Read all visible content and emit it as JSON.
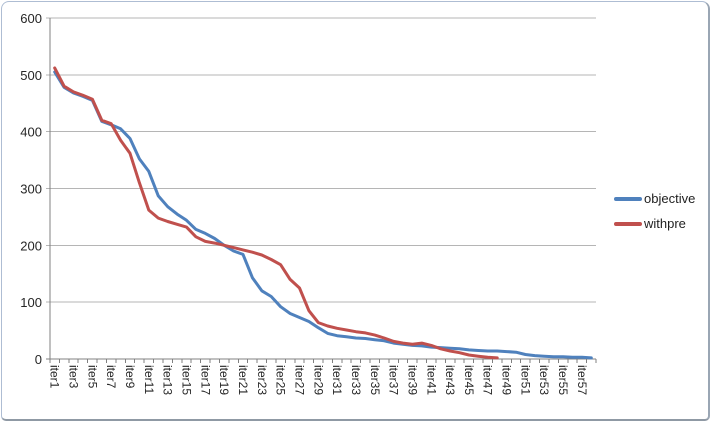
{
  "chart_data": {
    "type": "line",
    "title": "",
    "xlabel": "",
    "ylabel": "",
    "n_points": 58,
    "x_tick_labels": [
      "iter1",
      "iter3",
      "iter5",
      "iter7",
      "iter9",
      "iter11",
      "iter13",
      "iter15",
      "iter17",
      "iter19",
      "iter21",
      "iter23",
      "iter25",
      "iter27",
      "iter29",
      "iter31",
      "iter33",
      "iter35",
      "iter37",
      "iter39",
      "iter41",
      "iter43",
      "iter45",
      "iter47",
      "iter49",
      "iter51",
      "iter53",
      "iter55",
      "iter57"
    ],
    "x_label_interval": 2,
    "yticks": [
      0,
      100,
      200,
      300,
      400,
      500,
      600
    ],
    "ylim": [
      0,
      600
    ],
    "grid": true,
    "legend_position": "right",
    "series": [
      {
        "name": "objective",
        "color": "#4f81bd",
        "values": [
          505,
          478,
          468,
          462,
          455,
          418,
          412,
          405,
          388,
          352,
          330,
          287,
          268,
          255,
          244,
          228,
          221,
          212,
          200,
          190,
          184,
          143,
          120,
          110,
          92,
          80,
          73,
          66,
          55,
          45,
          41,
          39,
          37,
          36,
          34,
          32,
          28,
          26,
          24,
          23,
          21,
          20,
          19,
          18,
          16,
          15,
          14,
          14,
          13,
          12,
          8,
          6,
          5,
          4,
          4,
          3,
          3,
          2
        ]
      },
      {
        "name": "withpre",
        "color": "#c0504d",
        "values": [
          512,
          480,
          470,
          464,
          457,
          420,
          414,
          385,
          362,
          310,
          262,
          248,
          242,
          237,
          232,
          215,
          207,
          204,
          200,
          196,
          192,
          188,
          183,
          175,
          166,
          140,
          125,
          85,
          64,
          58,
          54,
          51,
          48,
          46,
          42,
          37,
          31,
          28,
          26,
          28,
          24,
          18,
          14,
          11,
          7,
          5,
          3,
          2
        ]
      }
    ]
  },
  "style": {
    "gridline_color": "#b5b5b5",
    "axis_color": "#808080",
    "tick_label_color": "#262626",
    "line_width": 3
  }
}
